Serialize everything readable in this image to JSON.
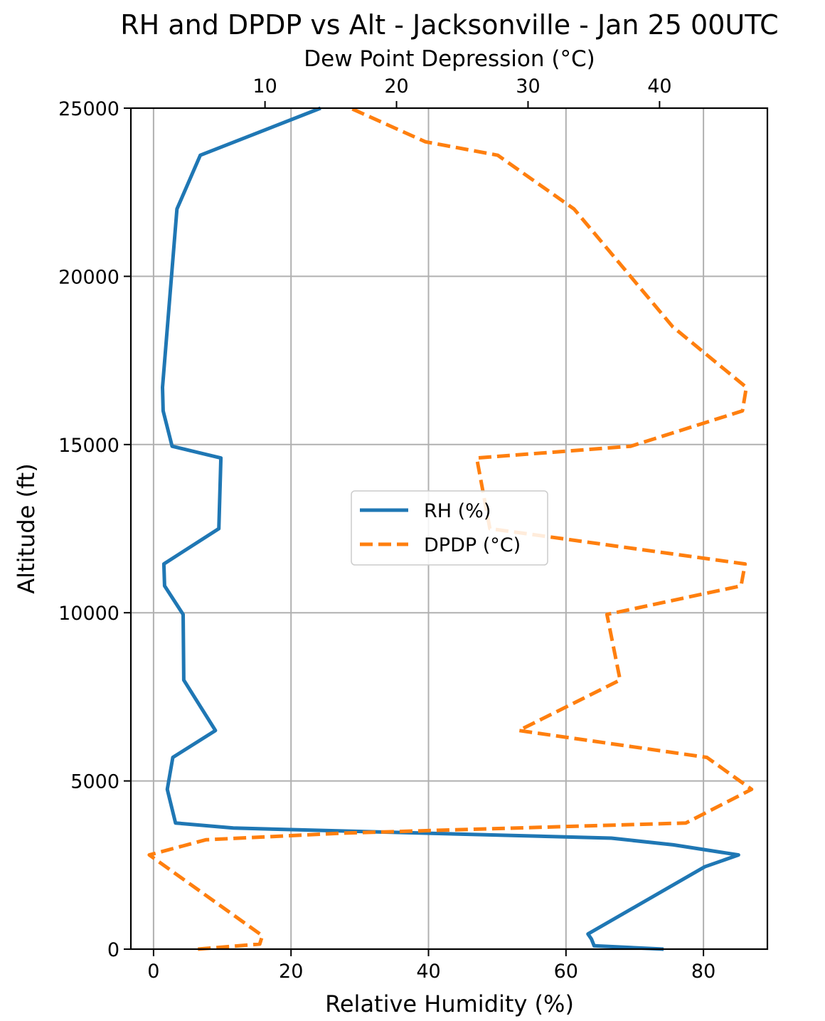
{
  "chart_data": {
    "type": "line",
    "title": "RH and DPDP vs Alt - Jacksonville - Jan 25 00UTC",
    "xlabel": "Relative Humidity (%)",
    "x2label": "Dew Point Depression (°C)",
    "ylabel": "Altitude (ft)",
    "xlim": [
      -3.3,
      89.3
    ],
    "x2lim": [
      -0.2,
      48.2
    ],
    "ylim": [
      0,
      25000
    ],
    "xticks": [
      0,
      20,
      40,
      60,
      80
    ],
    "x2ticks": [
      10,
      20,
      30,
      40
    ],
    "yticks": [
      0,
      5000,
      10000,
      15000,
      20000,
      25000
    ],
    "grid": true,
    "legend_position": "center",
    "series": [
      {
        "name": "RH (%)",
        "axis": "bottom",
        "color": "#1f77b4",
        "style": "solid",
        "points": [
          [
            74.2,
            0
          ],
          [
            64.1,
            100
          ],
          [
            63.7,
            300
          ],
          [
            63.2,
            450
          ],
          [
            80.2,
            2450
          ],
          [
            85.1,
            2800
          ],
          [
            75.6,
            3100
          ],
          [
            66.6,
            3300
          ],
          [
            11.6,
            3600
          ],
          [
            3.2,
            3750
          ],
          [
            2.0,
            4750
          ],
          [
            2.8,
            5700
          ],
          [
            9.0,
            6500
          ],
          [
            4.4,
            8000
          ],
          [
            4.3,
            9950
          ],
          [
            1.6,
            10800
          ],
          [
            1.5,
            11450
          ],
          [
            9.5,
            12500
          ],
          [
            9.8,
            14600
          ],
          [
            2.7,
            14950
          ],
          [
            1.4,
            16000
          ],
          [
            1.3,
            16700
          ],
          [
            3.4,
            22000
          ],
          [
            6.8,
            23600
          ],
          [
            24.3,
            25000
          ]
        ]
      },
      {
        "name": "DPDP (°C)",
        "axis": "top",
        "color": "#ff7f0e",
        "style": "dashed",
        "points": [
          [
            4.9,
            0
          ],
          [
            9.6,
            150
          ],
          [
            9.8,
            400
          ],
          [
            1.2,
            2800
          ],
          [
            5.5,
            3250
          ],
          [
            16.0,
            3450
          ],
          [
            42.0,
            3750
          ],
          [
            47.0,
            4750
          ],
          [
            43.6,
            5700
          ],
          [
            29.3,
            6500
          ],
          [
            37.0,
            8000
          ],
          [
            36.0,
            9950
          ],
          [
            46.2,
            10800
          ],
          [
            46.5,
            11450
          ],
          [
            27.1,
            12500
          ],
          [
            26.1,
            14600
          ],
          [
            37.8,
            14950
          ],
          [
            46.3,
            16000
          ],
          [
            46.6,
            16700
          ],
          [
            41.0,
            18500
          ],
          [
            33.5,
            22000
          ],
          [
            27.7,
            23600
          ],
          [
            22.2,
            24000
          ],
          [
            16.5,
            25000
          ]
        ]
      }
    ]
  }
}
